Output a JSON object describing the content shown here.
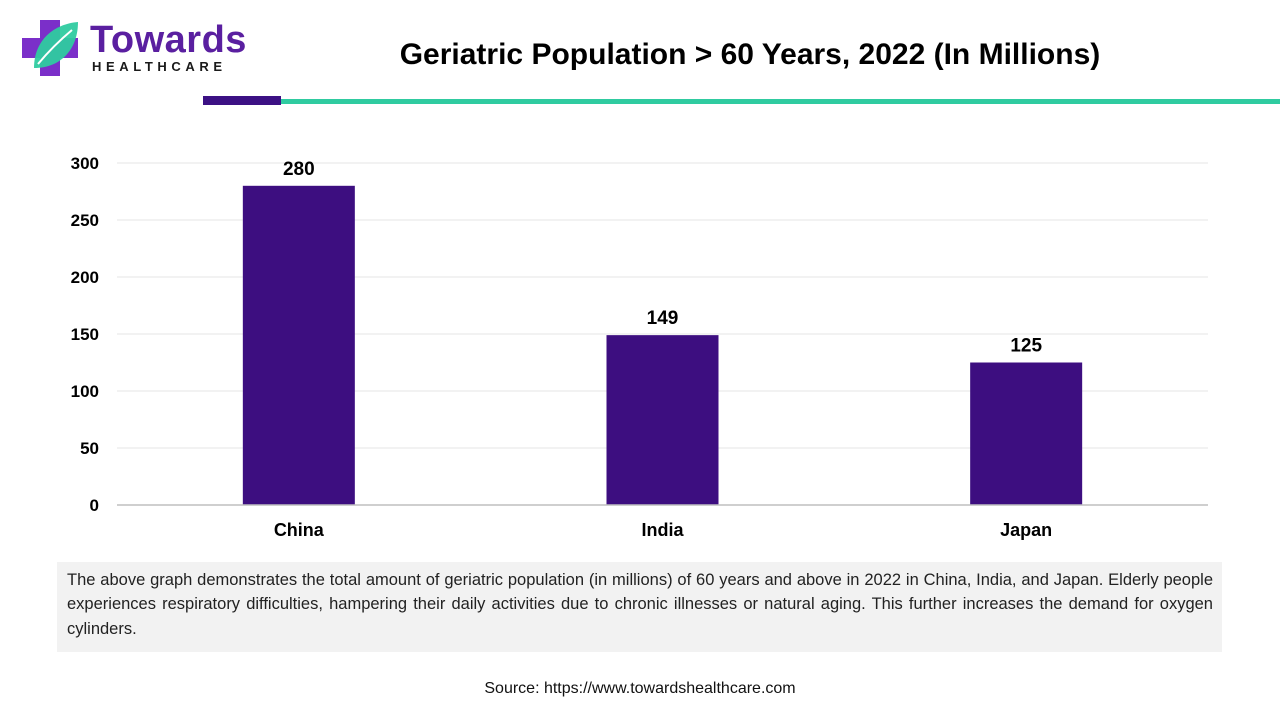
{
  "brand": {
    "name": "Towards",
    "sub": "HEALTHCARE",
    "colors": {
      "purple": "#5a1fa0",
      "teal": "#2fcba0"
    },
    "icon": "medical-cross-leaf-icon"
  },
  "header": {
    "title": "Geriatric Population > 60 Years, 2022 (In Millions)"
  },
  "chart_data": {
    "type": "bar",
    "title": "Geriatric Population > 60 Years, 2022 (In Millions)",
    "categories": [
      "China",
      "India",
      "Japan"
    ],
    "values": [
      280,
      149,
      125
    ],
    "data_labels": [
      "280",
      "149",
      "125"
    ],
    "yticks": [
      0,
      50,
      100,
      150,
      200,
      250,
      300
    ],
    "ylim": [
      0,
      300
    ],
    "xlabel": "",
    "ylabel": "",
    "grid": true,
    "legend": "none",
    "bar_color": "#3d0e80"
  },
  "description": "The above graph demonstrates the total amount of geriatric population (in millions) of 60 years and above in 2022 in China, India, and Japan. Elderly people experiences respiratory difficulties, hampering their daily activities due to chronic illnesses or natural aging. This further increases the demand for oxygen cylinders.",
  "source": "Source: https://www.towardshealthcare.com"
}
